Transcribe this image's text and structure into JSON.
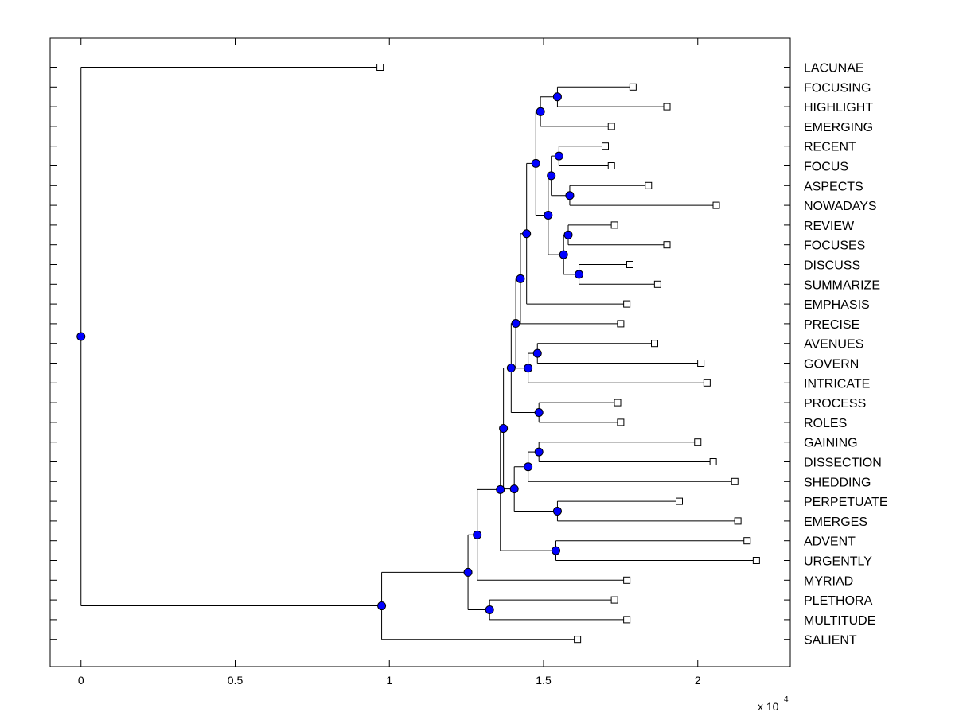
{
  "chart_data": {
    "type": "dendrogram",
    "orientation": "horizontal",
    "x_scale_label": "x 10",
    "x_scale_exponent": "4",
    "xlim": [
      -0.1,
      2.3
    ],
    "xticks": [
      0,
      0.5,
      1,
      1.5,
      2
    ],
    "xtick_labels": [
      "0",
      "0.5",
      "1",
      "1.5",
      "2"
    ],
    "leaves": [
      {
        "label": "LACUNAE",
        "value": 0.97
      },
      {
        "label": "FOCUSING",
        "value": 1.79
      },
      {
        "label": "HIGHLIGHT",
        "value": 1.9
      },
      {
        "label": "EMERGING",
        "value": 1.72
      },
      {
        "label": "RECENT",
        "value": 1.7
      },
      {
        "label": "FOCUS",
        "value": 1.72
      },
      {
        "label": "ASPECTS",
        "value": 1.84
      },
      {
        "label": "NOWADAYS",
        "value": 2.06
      },
      {
        "label": "REVIEW",
        "value": 1.73
      },
      {
        "label": "FOCUSES",
        "value": 1.9
      },
      {
        "label": "DISCUSS",
        "value": 1.78
      },
      {
        "label": "SUMMARIZE",
        "value": 1.87
      },
      {
        "label": "EMPHASIS",
        "value": 1.77
      },
      {
        "label": "PRECISE",
        "value": 1.75
      },
      {
        "label": "AVENUES",
        "value": 1.86
      },
      {
        "label": "GOVERN",
        "value": 2.01
      },
      {
        "label": "INTRICATE",
        "value": 2.03
      },
      {
        "label": "PROCESS",
        "value": 1.74
      },
      {
        "label": "ROLES",
        "value": 1.75
      },
      {
        "label": "GAINING",
        "value": 2.0
      },
      {
        "label": "DISSECTION",
        "value": 2.05
      },
      {
        "label": "SHEDDING",
        "value": 2.12
      },
      {
        "label": "PERPETUATE",
        "value": 1.94
      },
      {
        "label": "EMERGES",
        "value": 2.13
      },
      {
        "label": "ADVENT",
        "value": 2.16
      },
      {
        "label": "URGENTLY",
        "value": 2.19
      },
      {
        "label": "MYRIAD",
        "value": 1.77
      },
      {
        "label": "PLETHORA",
        "value": 1.73
      },
      {
        "label": "MULTITUDE",
        "value": 1.77
      },
      {
        "label": "SALIENT",
        "value": 1.61
      }
    ],
    "nodes": [
      {
        "id": "n1",
        "value": 1.545,
        "children": [
          "FOCUSING",
          "HIGHLIGHT"
        ]
      },
      {
        "id": "n2",
        "value": 1.49,
        "children": [
          "n1",
          "EMERGING"
        ]
      },
      {
        "id": "n3",
        "value": 1.55,
        "children": [
          "RECENT",
          "FOCUS"
        ]
      },
      {
        "id": "n4",
        "value": 1.585,
        "children": [
          "ASPECTS",
          "NOWADAYS"
        ]
      },
      {
        "id": "n5",
        "value": 1.525,
        "children": [
          "n3",
          "n4"
        ]
      },
      {
        "id": "n6",
        "value": 1.58,
        "children": [
          "REVIEW",
          "FOCUSES"
        ]
      },
      {
        "id": "n7",
        "value": 1.615,
        "children": [
          "DISCUSS",
          "SUMMARIZE"
        ]
      },
      {
        "id": "n8",
        "value": 1.565,
        "children": [
          "n6",
          "n7"
        ]
      },
      {
        "id": "n9",
        "value": 1.515,
        "children": [
          "n5",
          "n8"
        ]
      },
      {
        "id": "n10",
        "value": 1.475,
        "children": [
          "n2",
          "n9"
        ]
      },
      {
        "id": "n11",
        "value": 1.445,
        "children": [
          "n10",
          "EMPHASIS"
        ]
      },
      {
        "id": "n12",
        "value": 1.425,
        "children": [
          "n11",
          "PRECISE"
        ]
      },
      {
        "id": "n13",
        "value": 1.48,
        "children": [
          "AVENUES",
          "GOVERN"
        ]
      },
      {
        "id": "n14",
        "value": 1.45,
        "children": [
          "n13",
          "INTRICATE"
        ]
      },
      {
        "id": "n15",
        "value": 1.41,
        "children": [
          "n12",
          "n14"
        ]
      },
      {
        "id": "n16",
        "value": 1.485,
        "children": [
          "PROCESS",
          "ROLES"
        ]
      },
      {
        "id": "n17",
        "value": 1.395,
        "children": [
          "n15",
          "n16"
        ]
      },
      {
        "id": "n18",
        "value": 1.485,
        "children": [
          "GAINING",
          "DISSECTION"
        ]
      },
      {
        "id": "n19",
        "value": 1.45,
        "children": [
          "n18",
          "SHEDDING"
        ]
      },
      {
        "id": "n20",
        "value": 1.545,
        "children": [
          "PERPETUATE",
          "EMERGES"
        ]
      },
      {
        "id": "n21",
        "value": 1.405,
        "children": [
          "n19",
          "n20"
        ]
      },
      {
        "id": "n22",
        "value": 1.37,
        "children": [
          "n17",
          "n21"
        ]
      },
      {
        "id": "n23",
        "value": 1.54,
        "children": [
          "ADVENT",
          "URGENTLY"
        ]
      },
      {
        "id": "n24",
        "value": 1.36,
        "children": [
          "n22",
          "n23"
        ]
      },
      {
        "id": "n25",
        "value": 1.285,
        "children": [
          "n24",
          "MYRIAD"
        ]
      },
      {
        "id": "n26",
        "value": 1.325,
        "children": [
          "PLETHORA",
          "MULTITUDE"
        ]
      },
      {
        "id": "n27",
        "value": 1.255,
        "children": [
          "n25",
          "n26"
        ]
      },
      {
        "id": "n28",
        "value": 0.975,
        "children": [
          "n27",
          "SALIENT"
        ]
      },
      {
        "id": "n29",
        "value": 0.0,
        "children": [
          "LACUNAE",
          "n28"
        ]
      }
    ],
    "colors": {
      "node_fill": "#0000ff",
      "node_stroke": "#000000",
      "leaf_fill": "#ffffff",
      "line": "#000000"
    }
  }
}
